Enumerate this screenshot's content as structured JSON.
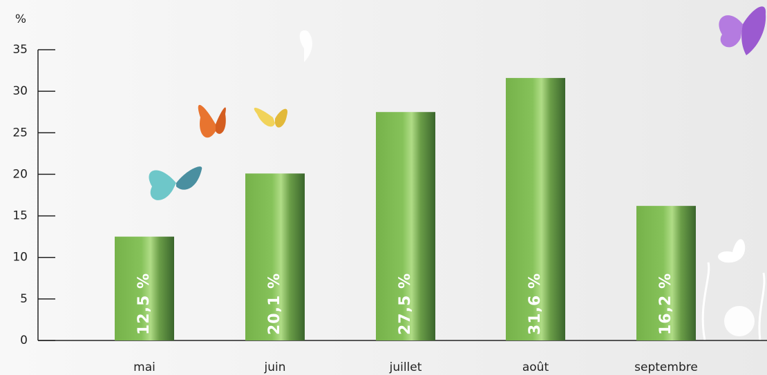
{
  "chart_data": {
    "type": "bar",
    "y_label": "%",
    "categories": [
      "mai",
      "juin",
      "juillet",
      "août",
      "septembre"
    ],
    "values": [
      12.5,
      20.1,
      27.5,
      31.6,
      16.2
    ],
    "value_labels": [
      "12,5 %",
      "20,1 %",
      "27,5 %",
      "31,6 %",
      "16,2 %"
    ],
    "color": "#7ab648",
    "ylim": [
      0,
      35
    ],
    "yticks": [
      0,
      5,
      10,
      15,
      20,
      25,
      30,
      35
    ]
  }
}
